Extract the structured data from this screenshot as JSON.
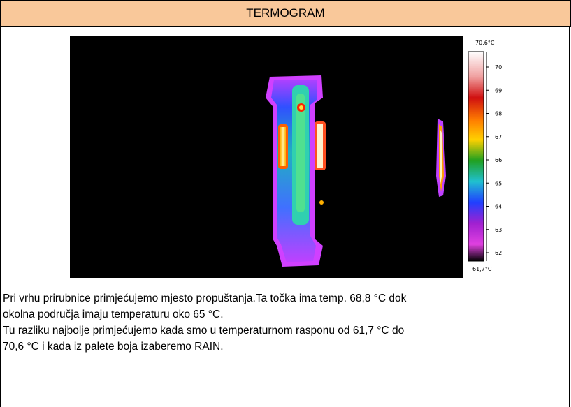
{
  "header": {
    "title": "TERMOGRAM"
  },
  "scale": {
    "top_label": "70,6°C",
    "bottom_label": "61,7°C",
    "ticks": [
      "70",
      "69",
      "68",
      "67",
      "66",
      "65",
      "64",
      "63",
      "62"
    ]
  },
  "description": {
    "lines": [
      "Pri vrhu prirubnice primjećujemo mjesto propuštanja.Ta točka ima temp. 68,8 °C dok",
      "okolna područja imaju temperaturu oko 65 °C.",
      "Tu razliku najbolje primjećujemo kada smo u temperaturnom rasponu od 61,7 °C do",
      "70,6 °C i kada iz palete boja izaberemo RAIN."
    ]
  }
}
